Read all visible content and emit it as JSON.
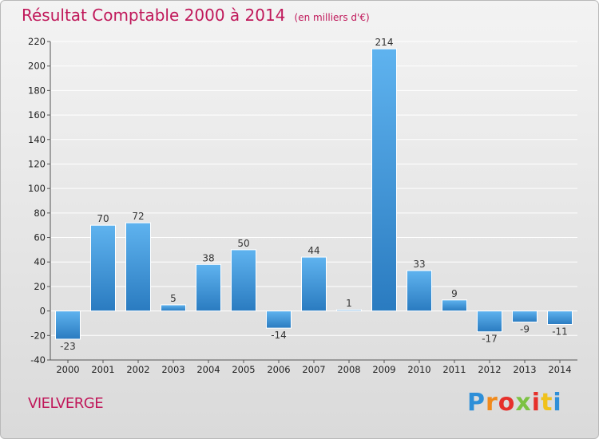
{
  "title": {
    "main": "Résultat Comptable 2000 à 2014",
    "unit": "(en milliers d'€)"
  },
  "commune": "VIELVERGE",
  "logo": {
    "text": "Proxiti",
    "letters": [
      "P",
      "r",
      "o",
      "x",
      "i",
      "t",
      "i"
    ],
    "colors": [
      "#2e8fd8",
      "#f08a1c",
      "#e6302b",
      "#7cc242",
      "#e6302b",
      "#f0c21c",
      "#2e8fd8"
    ]
  },
  "colors": {
    "bar_top": "#5fb3ef",
    "bar_bottom": "#2a7bc0",
    "grid": "#ffffff",
    "axis": "#555555"
  },
  "chart_data": {
    "type": "bar",
    "title": "Résultat Comptable 2000 à 2014",
    "subtitle": "(en milliers d'€)",
    "xlabel": "",
    "ylabel": "",
    "categories": [
      "2000",
      "2001",
      "2002",
      "2003",
      "2004",
      "2005",
      "2006",
      "2007",
      "2008",
      "2009",
      "2010",
      "2011",
      "2012",
      "2013",
      "2014"
    ],
    "values": [
      -23,
      70,
      72,
      5,
      38,
      50,
      -14,
      44,
      1,
      214,
      33,
      9,
      -17,
      -9,
      -11
    ],
    "value_labels": [
      "-23",
      "70",
      "72",
      "5",
      "38",
      "50",
      "-14",
      "44",
      "1",
      "214",
      "33",
      "9",
      "-17",
      "-9",
      "-11"
    ],
    "ylim": [
      -40,
      220
    ],
    "yticks": [
      -40,
      -20,
      0,
      20,
      40,
      60,
      80,
      100,
      120,
      140,
      160,
      180,
      200,
      220
    ],
    "grid": true
  }
}
